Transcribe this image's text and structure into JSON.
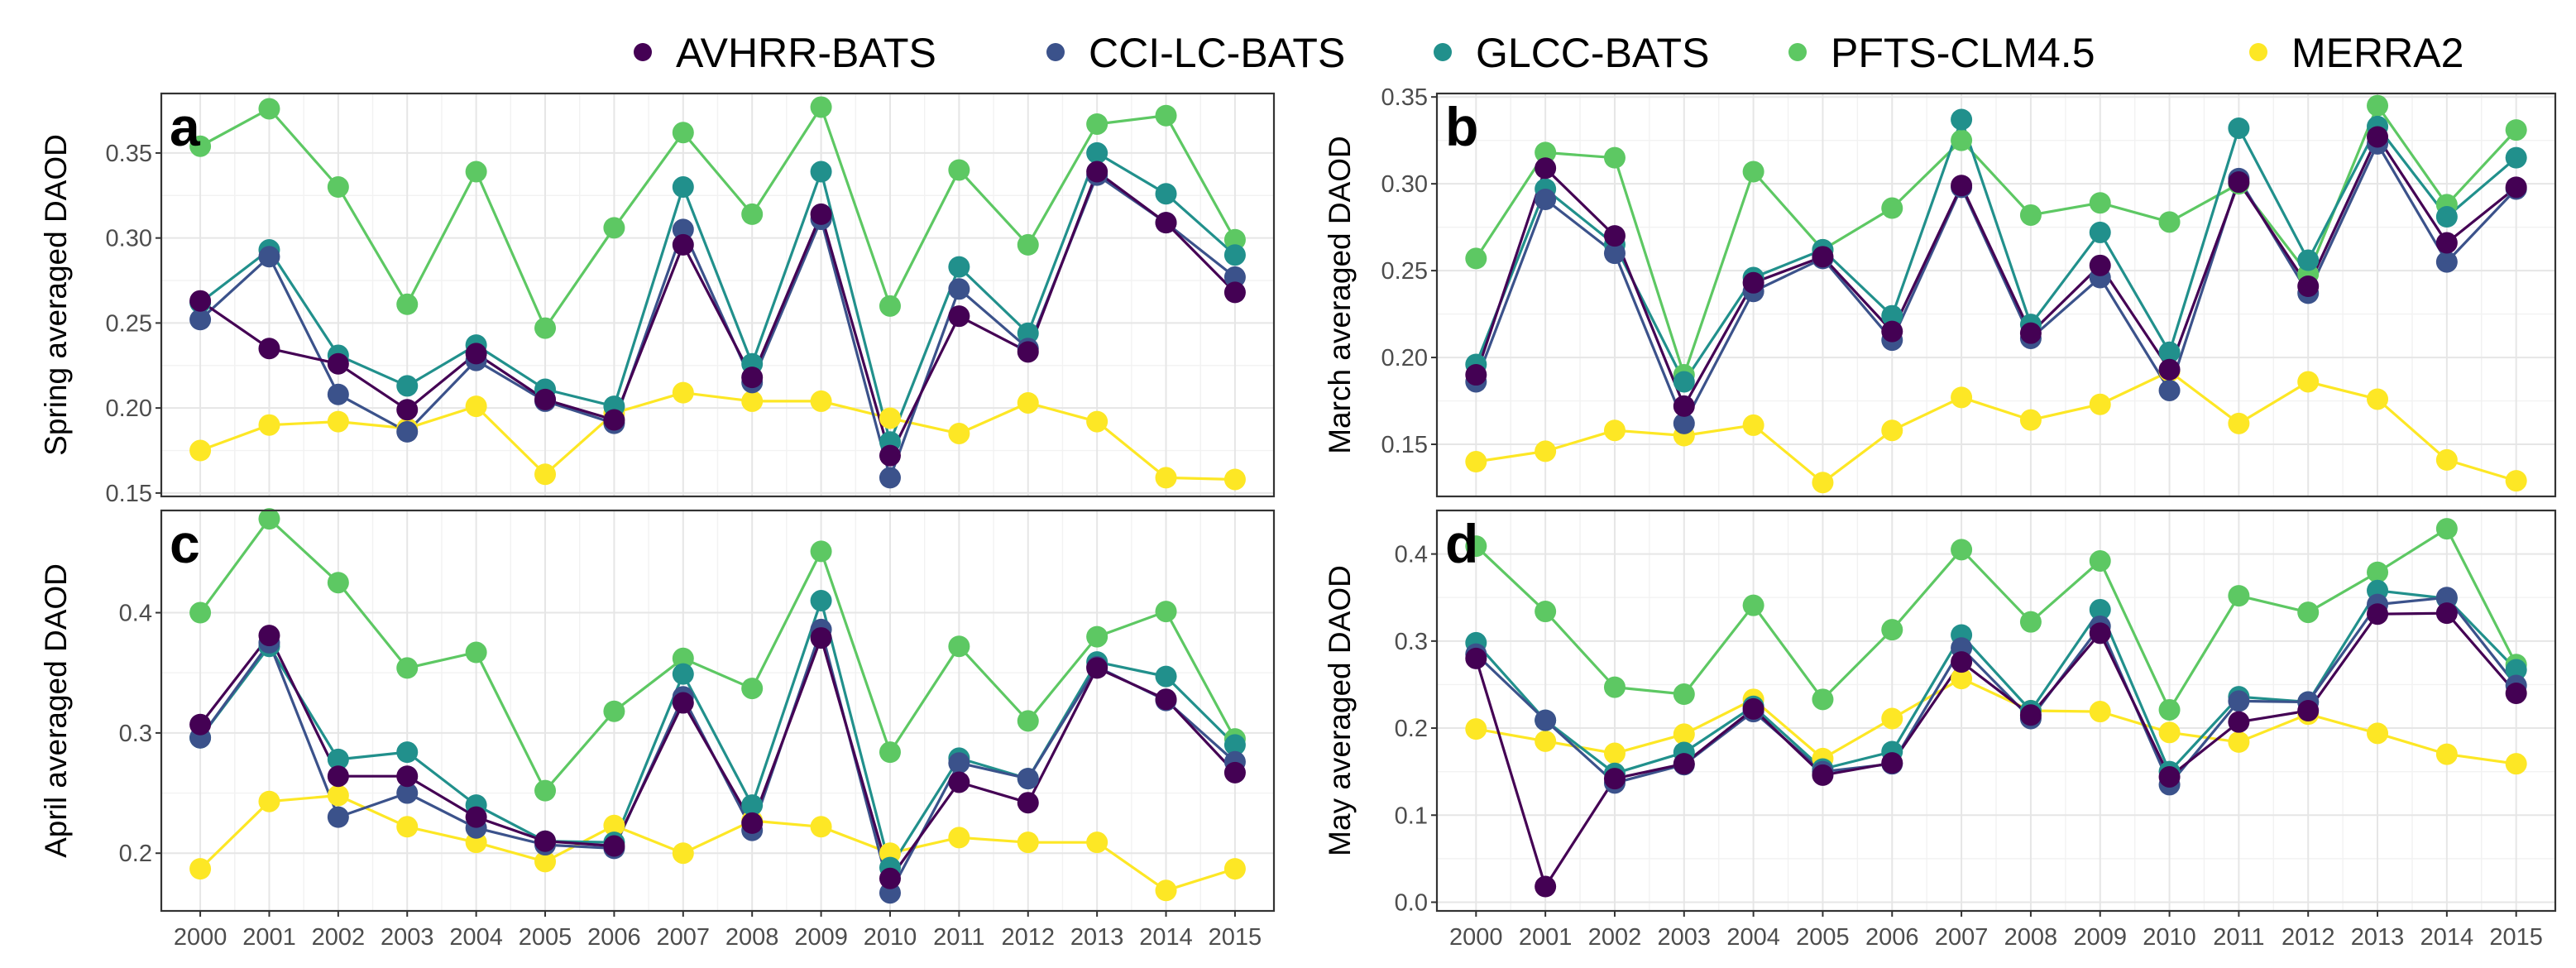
{
  "colors": {
    "AVHRR-BATS": "#440154",
    "CCI-LC-BATS": "#3b528b",
    "GLCC-BATS": "#21908c",
    "PFTS-CLM4.5": "#5dc863",
    "MERRA2": "#fde725"
  },
  "legend": [
    "AVHRR-BATS",
    "CCI-LC-BATS",
    "GLCC-BATS",
    "PFTS-CLM4.5",
    "MERRA2"
  ],
  "chart_data": [
    {
      "type": "line",
      "panel": "a",
      "ylabel": "Spring averaged DAOD",
      "categories": [
        "2000",
        "2001",
        "2002",
        "2003",
        "2004",
        "2005",
        "2006",
        "2007",
        "2008",
        "2009",
        "2010",
        "2011",
        "2012",
        "2013",
        "2014",
        "2015"
      ],
      "ylim": [
        0.148,
        0.385
      ],
      "yticks": [
        0.15,
        0.2,
        0.25,
        0.3,
        0.35
      ],
      "ytick_labels": [
        "0.15",
        "0.20",
        "0.25",
        "0.30",
        "0.35"
      ],
      "series": [
        {
          "name": "PFTS-CLM4.5",
          "values": [
            0.354,
            0.376,
            0.33,
            0.261,
            0.339,
            0.247,
            0.306,
            0.362,
            0.314,
            0.377,
            0.26,
            0.34,
            0.296,
            0.367,
            0.372,
            0.299
          ]
        },
        {
          "name": "MERRA2",
          "values": [
            0.175,
            0.19,
            0.192,
            0.188,
            0.201,
            0.161,
            0.197,
            0.209,
            0.204,
            0.204,
            0.194,
            0.185,
            0.203,
            0.192,
            0.159,
            0.158
          ]
        },
        {
          "name": "GLCC-BATS",
          "values": [
            0.262,
            0.293,
            0.231,
            0.213,
            0.237,
            0.211,
            0.201,
            0.33,
            0.226,
            0.339,
            0.18,
            0.283,
            0.244,
            0.35,
            0.326,
            0.29
          ]
        },
        {
          "name": "CCI-LC-BATS",
          "values": [
            0.252,
            0.289,
            0.208,
            0.186,
            0.228,
            0.204,
            0.191,
            0.305,
            0.215,
            0.311,
            0.159,
            0.27,
            0.235,
            0.337,
            0.309,
            0.277
          ]
        },
        {
          "name": "AVHRR-BATS",
          "values": [
            0.263,
            0.235,
            0.226,
            0.199,
            0.232,
            0.205,
            0.193,
            0.296,
            0.218,
            0.314,
            0.172,
            0.254,
            0.233,
            0.339,
            0.309,
            0.268
          ]
        }
      ]
    },
    {
      "type": "line",
      "panel": "b",
      "ylabel": "March averaged DAOD",
      "categories": [
        "2000",
        "2001",
        "2002",
        "2003",
        "2004",
        "2005",
        "2006",
        "2007",
        "2008",
        "2009",
        "2010",
        "2011",
        "2012",
        "2013",
        "2014",
        "2015"
      ],
      "ylim": [
        0.12,
        0.352
      ],
      "yticks": [
        0.15,
        0.2,
        0.25,
        0.3,
        0.35
      ],
      "ytick_labels": [
        "0.15",
        "0.20",
        "0.25",
        "0.30",
        "0.35"
      ],
      "series": [
        {
          "name": "PFTS-CLM4.5",
          "values": [
            0.257,
            0.318,
            0.315,
            0.19,
            0.307,
            0.262,
            0.286,
            0.325,
            0.282,
            0.289,
            0.278,
            0.3,
            0.248,
            0.345,
            0.288,
            0.331
          ]
        },
        {
          "name": "MERRA2",
          "values": [
            0.14,
            0.146,
            0.158,
            0.155,
            0.161,
            0.128,
            0.158,
            0.177,
            0.164,
            0.173,
            0.192,
            0.162,
            0.186,
            0.176,
            0.141,
            0.129
          ]
        },
        {
          "name": "GLCC-BATS",
          "values": [
            0.196,
            0.297,
            0.265,
            0.186,
            0.246,
            0.262,
            0.224,
            0.337,
            0.219,
            0.272,
            0.203,
            0.332,
            0.256,
            0.333,
            0.281,
            0.315
          ]
        },
        {
          "name": "CCI-LC-BATS",
          "values": [
            0.186,
            0.291,
            0.26,
            0.162,
            0.238,
            0.257,
            0.21,
            0.298,
            0.211,
            0.246,
            0.181,
            0.303,
            0.237,
            0.323,
            0.255,
            0.297
          ]
        },
        {
          "name": "AVHRR-BATS",
          "values": [
            0.19,
            0.309,
            0.27,
            0.172,
            0.243,
            0.258,
            0.215,
            0.299,
            0.214,
            0.253,
            0.193,
            0.301,
            0.241,
            0.327,
            0.266,
            0.298
          ]
        }
      ]
    },
    {
      "type": "line",
      "panel": "c",
      "ylabel": "April averaged DAOD",
      "categories": [
        "2000",
        "2001",
        "2002",
        "2003",
        "2004",
        "2005",
        "2006",
        "2007",
        "2008",
        "2009",
        "2010",
        "2011",
        "2012",
        "2013",
        "2014",
        "2015"
      ],
      "ylim": [
        0.152,
        0.485
      ],
      "yticks": [
        0.2,
        0.3,
        0.4
      ],
      "ytick_labels": [
        "0.2",
        "0.3",
        "0.4"
      ],
      "series": [
        {
          "name": "PFTS-CLM4.5",
          "values": [
            0.4,
            0.478,
            0.425,
            0.354,
            0.367,
            0.252,
            0.318,
            0.362,
            0.337,
            0.451,
            0.284,
            0.372,
            0.31,
            0.38,
            0.401,
            0.295
          ]
        },
        {
          "name": "MERRA2",
          "values": [
            0.187,
            0.243,
            0.248,
            0.222,
            0.209,
            0.193,
            0.223,
            0.2,
            0.227,
            0.222,
            0.2,
            0.213,
            0.209,
            0.209,
            0.169,
            0.187
          ]
        },
        {
          "name": "GLCC-BATS",
          "values": [
            0.296,
            0.372,
            0.278,
            0.284,
            0.24,
            0.21,
            0.209,
            0.349,
            0.24,
            0.41,
            0.188,
            0.279,
            0.262,
            0.359,
            0.347,
            0.29
          ]
        },
        {
          "name": "CCI-LC-BATS",
          "values": [
            0.296,
            0.375,
            0.23,
            0.25,
            0.221,
            0.207,
            0.204,
            0.33,
            0.219,
            0.386,
            0.167,
            0.275,
            0.262,
            0.355,
            0.327,
            0.276
          ]
        },
        {
          "name": "AVHRR-BATS",
          "values": [
            0.307,
            0.381,
            0.264,
            0.264,
            0.23,
            0.21,
            0.206,
            0.325,
            0.225,
            0.379,
            0.179,
            0.259,
            0.242,
            0.354,
            0.328,
            0.267
          ]
        }
      ]
    },
    {
      "type": "line",
      "panel": "d",
      "ylabel": "May averaged DAOD",
      "categories": [
        "2000",
        "2001",
        "2002",
        "2003",
        "2004",
        "2005",
        "2006",
        "2007",
        "2008",
        "2009",
        "2010",
        "2011",
        "2012",
        "2013",
        "2014",
        "2015"
      ],
      "ylim": [
        -0.01,
        0.45
      ],
      "yticks": [
        0.0,
        0.1,
        0.2,
        0.3,
        0.4
      ],
      "ytick_labels": [
        "0.0",
        "0.1",
        "0.2",
        "0.3",
        "0.4"
      ],
      "series": [
        {
          "name": "PFTS-CLM4.5",
          "values": [
            0.409,
            0.334,
            0.247,
            0.239,
            0.341,
            0.233,
            0.313,
            0.405,
            0.322,
            0.392,
            0.221,
            0.352,
            0.333,
            0.379,
            0.429,
            0.273
          ]
        },
        {
          "name": "MERRA2",
          "values": [
            0.199,
            0.185,
            0.171,
            0.193,
            0.233,
            0.165,
            0.211,
            0.257,
            0.22,
            0.219,
            0.195,
            0.184,
            0.216,
            0.194,
            0.17,
            0.159
          ]
        },
        {
          "name": "GLCC-BATS",
          "values": [
            0.298,
            0.209,
            0.148,
            0.172,
            0.225,
            0.153,
            0.173,
            0.307,
            0.22,
            0.336,
            0.15,
            0.236,
            0.23,
            0.358,
            0.349,
            0.267
          ]
        },
        {
          "name": "CCI-LC-BATS",
          "values": [
            0.285,
            0.209,
            0.137,
            0.158,
            0.219,
            0.15,
            0.159,
            0.292,
            0.211,
            0.317,
            0.135,
            0.231,
            0.23,
            0.342,
            0.35,
            0.249
          ]
        },
        {
          "name": "AVHRR-BATS",
          "values": [
            0.28,
            0.018,
            0.142,
            0.159,
            0.222,
            0.146,
            0.16,
            0.276,
            0.215,
            0.309,
            0.144,
            0.207,
            0.22,
            0.331,
            0.332,
            0.24
          ]
        }
      ]
    }
  ]
}
